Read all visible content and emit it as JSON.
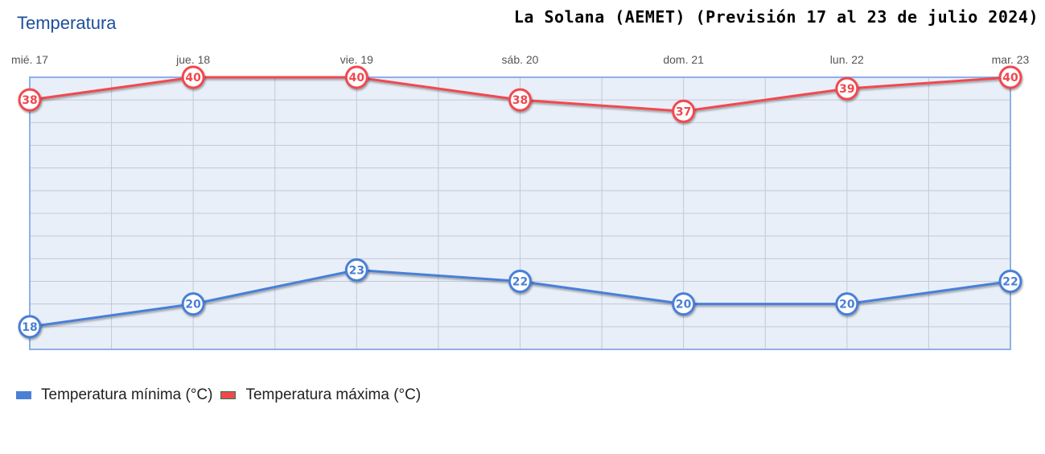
{
  "chart_data": {
    "type": "line",
    "title": "Temperatura",
    "subtitle": "La Solana (AEMET) (Previsión 17 al 23 de julio 2024)",
    "categories": [
      "mié. 17",
      "jue. 18",
      "vie. 19",
      "sáb. 20",
      "dom. 21",
      "lun. 22",
      "mar. 23"
    ],
    "ylim": [
      16,
      40
    ],
    "y_grid_step": 2,
    "grid": true,
    "legend_position": "bottom-left",
    "series": [
      {
        "name": "Temperatura mínima (°C)",
        "color": "#4a7fd6",
        "values": [
          18,
          20,
          23,
          22,
          20,
          20,
          22
        ]
      },
      {
        "name": "Temperatura máxima (°C)",
        "color": "#f0484f",
        "values": [
          38,
          40,
          40,
          38,
          37,
          39,
          40
        ]
      }
    ]
  },
  "colors": {
    "plot_bg": "#e8eff9",
    "plot_border": "#8fb0e6",
    "grid": "#c3c9d6"
  }
}
